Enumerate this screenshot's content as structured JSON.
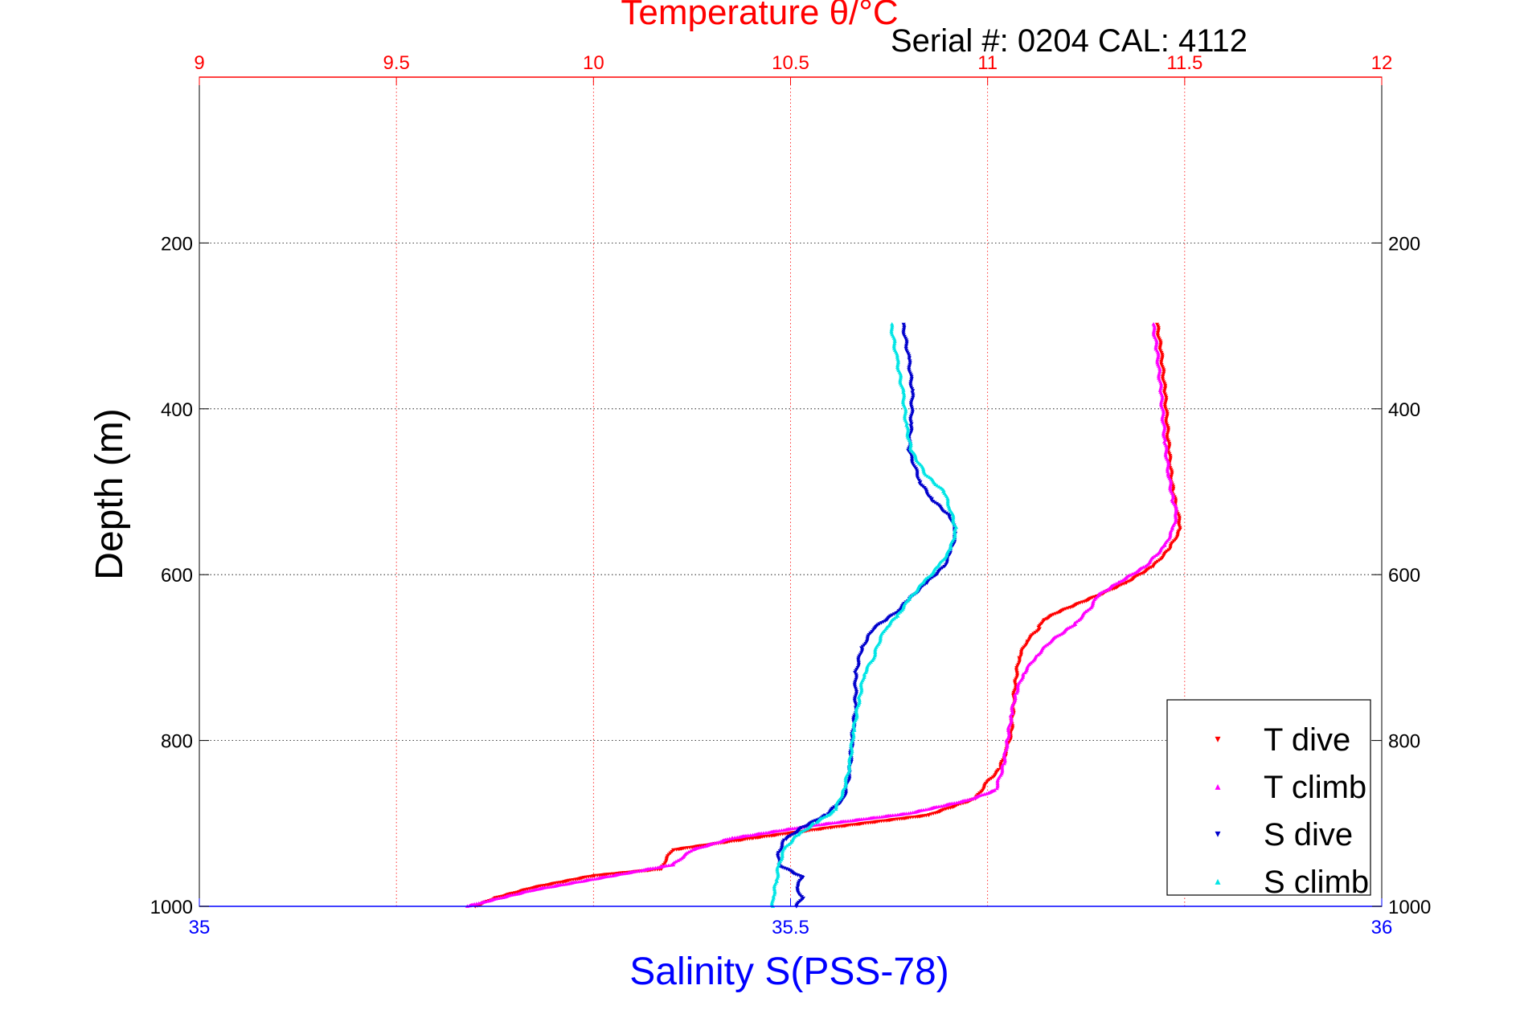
{
  "chart_data": {
    "type": "scatter",
    "title": "Temperature θ/°C",
    "subtitle": "Serial #: 0204  CAL: 4112",
    "xlabel_bottom": "Salinity S(PSS-78)",
    "xlabel_top": "Temperature θ/°C",
    "ylabel": "Depth (m)",
    "xlim_bottom": [
      35,
      36
    ],
    "xlim_top": [
      9,
      12
    ],
    "ylim": [
      0,
      1000
    ],
    "y_reversed": true,
    "grid": true,
    "legend_position": "bottom-right",
    "top_ticks": [
      "9",
      "9.5",
      "10",
      "10.5",
      "11",
      "11.5",
      "12"
    ],
    "bottom_ticks": [
      "35",
      "35.5",
      "36"
    ],
    "y_ticks": [
      "200",
      "400",
      "600",
      "800",
      "1000"
    ],
    "colors": {
      "t_dive": "#ff0000",
      "t_climb": "#ff00ff",
      "s_dive": "#0000cc",
      "s_climb": "#00e5e5",
      "top_axis": "#ff0000",
      "bottom_axis": "#0000ff"
    },
    "series": [
      {
        "name": "T dive",
        "axis": "top",
        "color": "#ff0000",
        "points": [
          [
            11.43,
            298
          ],
          [
            11.44,
            330
          ],
          [
            11.45,
            380
          ],
          [
            11.46,
            450
          ],
          [
            11.47,
            500
          ],
          [
            11.48,
            520
          ],
          [
            11.49,
            545
          ],
          [
            11.46,
            570
          ],
          [
            11.42,
            590
          ],
          [
            11.35,
            610
          ],
          [
            11.28,
            625
          ],
          [
            11.18,
            645
          ],
          [
            11.14,
            655
          ],
          [
            11.13,
            665
          ],
          [
            11.1,
            680
          ],
          [
            11.08,
            700
          ],
          [
            11.07,
            730
          ],
          [
            11.065,
            760
          ],
          [
            11.06,
            790
          ],
          [
            11.05,
            810
          ],
          [
            11.03,
            835
          ],
          [
            11.0,
            850
          ],
          [
            10.97,
            870
          ],
          [
            10.85,
            890
          ],
          [
            10.6,
            905
          ],
          [
            10.4,
            918
          ],
          [
            10.2,
            932
          ],
          [
            10.17,
            955
          ],
          [
            10.0,
            963
          ],
          [
            9.85,
            977
          ],
          [
            9.75,
            990
          ],
          [
            9.7,
            1000
          ]
        ]
      },
      {
        "name": "T climb",
        "axis": "top",
        "color": "#ff00ff",
        "points": [
          [
            11.42,
            298
          ],
          [
            11.43,
            330
          ],
          [
            11.44,
            380
          ],
          [
            11.45,
            440
          ],
          [
            11.46,
            480
          ],
          [
            11.47,
            510
          ],
          [
            11.48,
            525
          ],
          [
            11.47,
            545
          ],
          [
            11.45,
            565
          ],
          [
            11.4,
            590
          ],
          [
            11.33,
            610
          ],
          [
            11.28,
            625
          ],
          [
            11.26,
            640
          ],
          [
            11.22,
            660
          ],
          [
            11.16,
            680
          ],
          [
            11.12,
            700
          ],
          [
            11.09,
            720
          ],
          [
            11.07,
            745
          ],
          [
            11.06,
            770
          ],
          [
            11.05,
            800
          ],
          [
            11.04,
            830
          ],
          [
            11.02,
            860
          ],
          [
            10.95,
            872
          ],
          [
            10.8,
            888
          ],
          [
            10.55,
            903
          ],
          [
            10.35,
            918
          ],
          [
            10.25,
            932
          ],
          [
            10.2,
            950
          ],
          [
            10.05,
            963
          ],
          [
            9.85,
            980
          ],
          [
            9.72,
            995
          ],
          [
            9.68,
            1000
          ]
        ]
      },
      {
        "name": "S dive",
        "axis": "bottom",
        "color": "#0000cc",
        "points": [
          [
            35.595,
            298
          ],
          [
            35.6,
            340
          ],
          [
            35.603,
            380
          ],
          [
            35.602,
            420
          ],
          [
            35.6,
            450
          ],
          [
            35.61,
            490
          ],
          [
            35.62,
            510
          ],
          [
            35.635,
            530
          ],
          [
            35.64,
            550
          ],
          [
            35.635,
            575
          ],
          [
            35.63,
            590
          ],
          [
            35.615,
            610
          ],
          [
            35.6,
            630
          ],
          [
            35.59,
            645
          ],
          [
            35.57,
            665
          ],
          [
            35.56,
            690
          ],
          [
            35.555,
            720
          ],
          [
            35.555,
            760
          ],
          [
            35.552,
            800
          ],
          [
            35.55,
            840
          ],
          [
            35.545,
            870
          ],
          [
            35.53,
            890
          ],
          [
            35.51,
            905
          ],
          [
            35.495,
            920
          ],
          [
            35.49,
            935
          ],
          [
            35.49,
            950
          ],
          [
            35.51,
            965
          ],
          [
            35.505,
            978
          ],
          [
            35.51,
            990
          ],
          [
            35.505,
            1000
          ]
        ]
      },
      {
        "name": "S climb",
        "axis": "bottom",
        "color": "#00e5e5",
        "points": [
          [
            35.585,
            298
          ],
          [
            35.59,
            340
          ],
          [
            35.595,
            380
          ],
          [
            35.598,
            420
          ],
          [
            35.602,
            450
          ],
          [
            35.615,
            480
          ],
          [
            35.63,
            500
          ],
          [
            35.635,
            520
          ],
          [
            35.64,
            545
          ],
          [
            35.635,
            570
          ],
          [
            35.625,
            590
          ],
          [
            35.612,
            610
          ],
          [
            35.6,
            630
          ],
          [
            35.59,
            650
          ],
          [
            35.58,
            665
          ],
          [
            35.575,
            680
          ],
          [
            35.57,
            700
          ],
          [
            35.562,
            720
          ],
          [
            35.558,
            750
          ],
          [
            35.553,
            790
          ],
          [
            35.55,
            830
          ],
          [
            35.545,
            860
          ],
          [
            35.537,
            885
          ],
          [
            35.52,
            900
          ],
          [
            35.505,
            915
          ],
          [
            35.495,
            930
          ],
          [
            35.49,
            950
          ],
          [
            35.488,
            970
          ],
          [
            35.485,
            990
          ],
          [
            35.485,
            1000
          ]
        ]
      }
    ],
    "legend": [
      {
        "label": "T dive",
        "color": "#ff0000",
        "marker": "▾"
      },
      {
        "label": "T climb",
        "color": "#ff00ff",
        "marker": "▴"
      },
      {
        "label": "S dive",
        "color": "#0000cc",
        "marker": "▾"
      },
      {
        "label": "S climb",
        "color": "#00e5e5",
        "marker": "▴"
      }
    ]
  }
}
